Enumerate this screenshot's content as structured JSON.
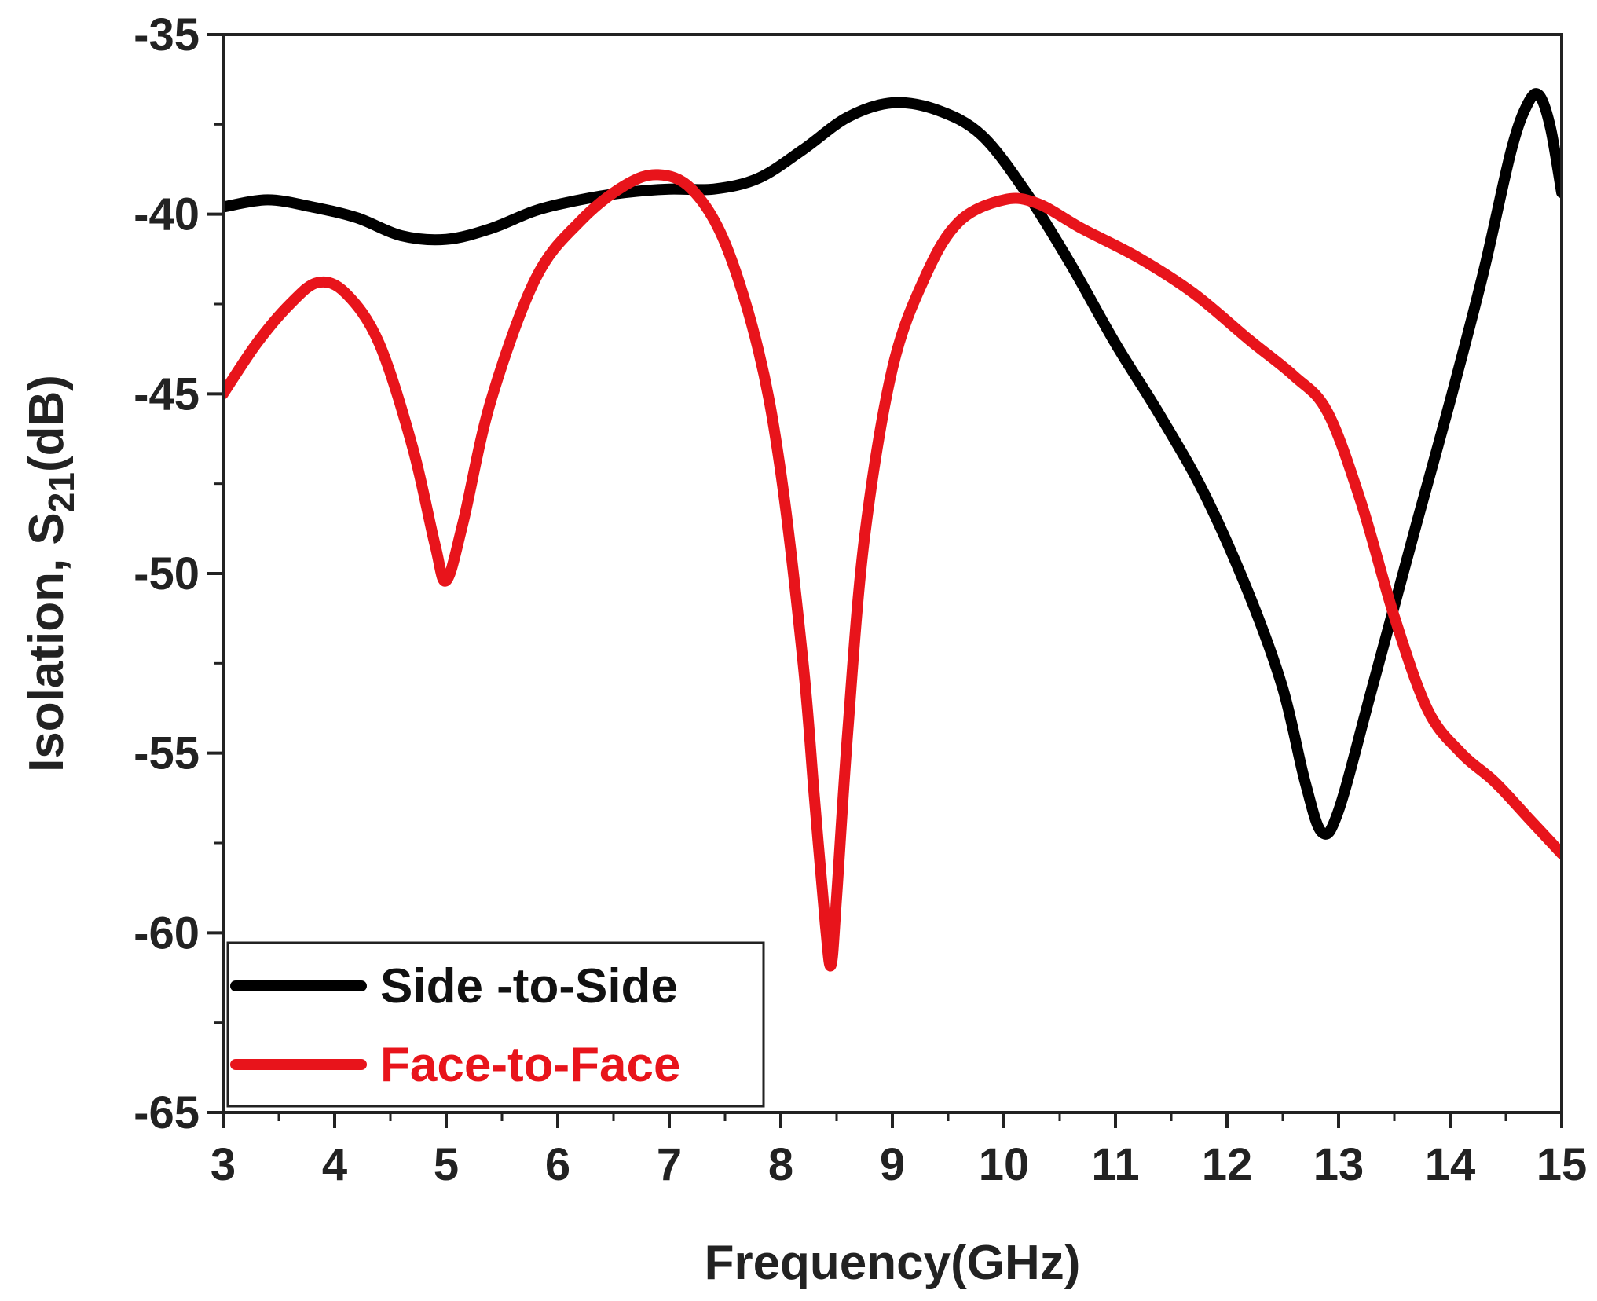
{
  "chart_data": {
    "type": "line",
    "xlabel": "Frequency(GHz)",
    "ylabel_main": "Isolation, S",
    "ylabel_sub": "21",
    "ylabel_tail": "(dB)",
    "xlim": [
      3,
      15
    ],
    "ylim": [
      -65,
      -35
    ],
    "xticks": [
      3,
      4,
      5,
      6,
      7,
      8,
      9,
      10,
      11,
      12,
      13,
      14,
      15
    ],
    "yticks": [
      -35,
      -40,
      -45,
      -50,
      -55,
      -60,
      -65
    ],
    "grid": false,
    "legend_position": "bottom-left",
    "series": [
      {
        "name": "Side -to-Side",
        "color": "#000000",
        "x": [
          3.0,
          3.4,
          3.8,
          4.2,
          4.6,
          5.0,
          5.4,
          5.8,
          6.2,
          6.6,
          7.0,
          7.4,
          7.8,
          8.2,
          8.6,
          9.0,
          9.4,
          9.8,
          10.2,
          10.6,
          11.0,
          11.4,
          11.8,
          12.2,
          12.5,
          12.7,
          12.85,
          13.0,
          13.3,
          13.7,
          14.0,
          14.3,
          14.55,
          14.7,
          14.8,
          14.9,
          15.0
        ],
        "y": [
          -39.8,
          -39.6,
          -39.8,
          -40.1,
          -40.6,
          -40.7,
          -40.4,
          -39.9,
          -39.6,
          -39.4,
          -39.3,
          -39.3,
          -39.0,
          -38.2,
          -37.3,
          -36.9,
          -37.1,
          -37.8,
          -39.4,
          -41.4,
          -43.6,
          -45.6,
          -47.8,
          -50.6,
          -53.2,
          -55.8,
          -57.2,
          -56.6,
          -53.2,
          -48.6,
          -45.2,
          -41.6,
          -38.2,
          -36.9,
          -36.7,
          -37.6,
          -39.4
        ]
      },
      {
        "name": "Face-to-Face",
        "color": "#e8141b",
        "x": [
          3.0,
          3.3,
          3.6,
          3.85,
          4.1,
          4.4,
          4.7,
          4.9,
          5.0,
          5.15,
          5.4,
          5.8,
          6.2,
          6.6,
          6.9,
          7.2,
          7.5,
          7.8,
          8.0,
          8.2,
          8.3,
          8.4,
          8.45,
          8.5,
          8.6,
          8.75,
          9.0,
          9.3,
          9.6,
          10.0,
          10.3,
          10.7,
          11.2,
          11.7,
          12.2,
          12.6,
          12.9,
          13.2,
          13.5,
          13.8,
          14.1,
          14.4,
          14.7,
          15.0
        ],
        "y": [
          -45.0,
          -43.6,
          -42.5,
          -41.9,
          -42.2,
          -43.6,
          -46.5,
          -49.2,
          -50.2,
          -48.6,
          -45.2,
          -41.8,
          -40.2,
          -39.2,
          -38.9,
          -39.3,
          -40.8,
          -43.8,
          -47.2,
          -52.5,
          -56.2,
          -59.8,
          -60.9,
          -59.0,
          -54.4,
          -49.0,
          -44.3,
          -41.7,
          -40.2,
          -39.6,
          -39.7,
          -40.4,
          -41.2,
          -42.2,
          -43.5,
          -44.5,
          -45.5,
          -48.0,
          -51.2,
          -53.8,
          -55.0,
          -55.8,
          -56.8,
          -57.8
        ]
      }
    ]
  }
}
